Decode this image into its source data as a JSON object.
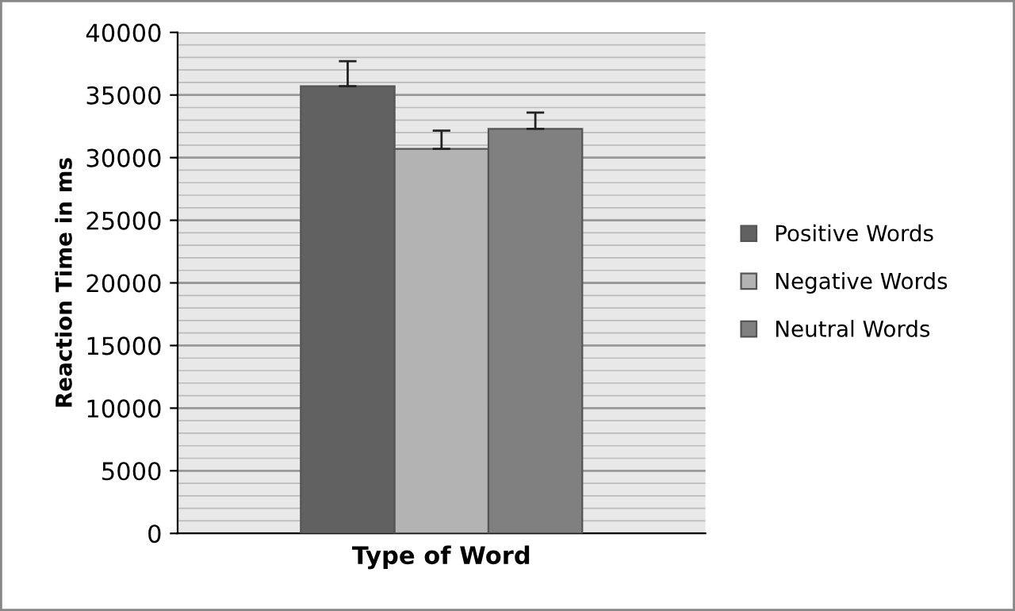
{
  "chart_data": {
    "type": "bar",
    "xlabel": "Type of Word",
    "ylabel": "Reaction Time in ms",
    "categories": [
      null
    ],
    "series": [
      {
        "name": "Positive Words",
        "color": "#616161",
        "values": [
          35700
        ],
        "errors": [
          2000
        ]
      },
      {
        "name": "Negative Words",
        "color": "#b3b3b3",
        "values": [
          30700
        ],
        "errors": [
          1450
        ]
      },
      {
        "name": "Neutral Words",
        "color": "#808080",
        "values": [
          32300
        ],
        "errors": [
          1300
        ]
      }
    ],
    "ylim": [
      0,
      40000
    ],
    "yticks": [
      0,
      5000,
      10000,
      15000,
      20000,
      25000,
      30000,
      35000,
      40000
    ],
    "grid": "y",
    "legend": "right"
  }
}
